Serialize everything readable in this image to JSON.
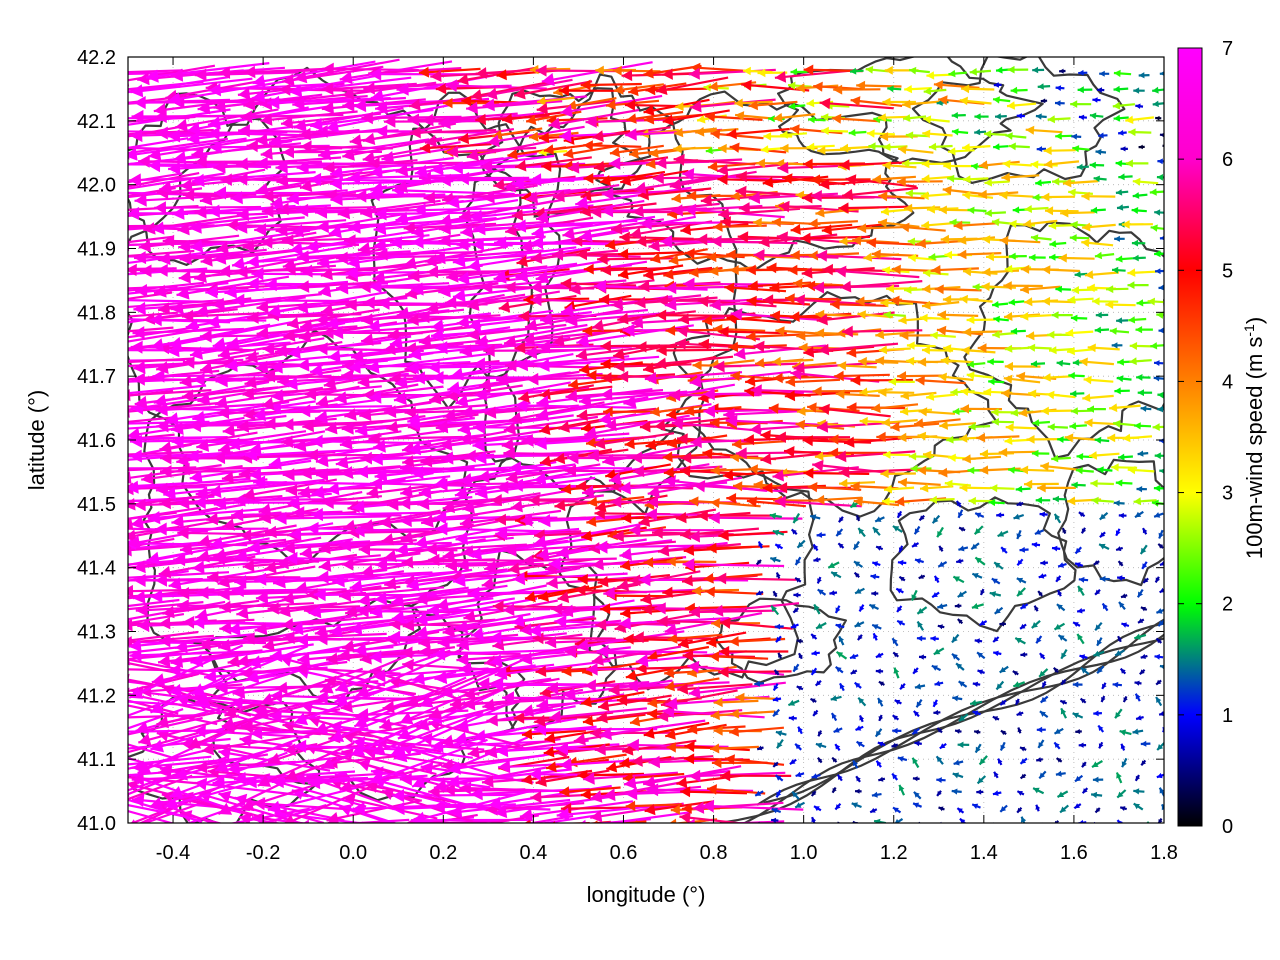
{
  "chart_data": {
    "type": "vector-field",
    "xlabel": "longitude (°)",
    "ylabel": "latitude (°)",
    "xlim": [
      -0.5,
      1.8
    ],
    "ylim": [
      41.0,
      42.2
    ],
    "x_ticks": [
      -0.4,
      -0.2,
      0.0,
      0.2,
      0.4,
      0.6,
      0.8,
      1.0,
      1.2,
      1.4,
      1.6,
      1.8
    ],
    "x_tick_labels": [
      "-0.4",
      "-0.2",
      "0.0",
      "0.2",
      "0.4",
      "0.6",
      "0.8",
      "1.0",
      "1.2",
      "1.4",
      "1.6",
      "1.8"
    ],
    "y_ticks": [
      41.0,
      41.1,
      41.2,
      41.3,
      41.4,
      41.5,
      41.6,
      41.7,
      41.8,
      41.9,
      42.0,
      42.1,
      42.2
    ],
    "y_tick_labels": [
      "41.0",
      "41.1",
      "41.2",
      "41.3",
      "41.4",
      "41.5",
      "41.6",
      "41.7",
      "41.8",
      "41.9",
      "42.0",
      "42.1",
      "42.2"
    ],
    "grid": "dotted",
    "colorbar": {
      "label_main": "100m-wind speed (m s",
      "label_sup": "-1",
      "label_end": ")",
      "range": [
        0,
        7
      ],
      "ticks": [
        0,
        1,
        2,
        3,
        4,
        5,
        6,
        7
      ],
      "tick_labels": [
        "0",
        "1",
        "2",
        "3",
        "4",
        "5",
        "6",
        "7"
      ],
      "colors": [
        "#000000",
        "#0000ff",
        "#00ff00",
        "#ffff00",
        "#ff8000",
        "#ff0000",
        "#ff00ff"
      ],
      "placement": "right"
    },
    "wind_regimes": [
      {
        "region": "west (lon < 0.4)",
        "typical_speed_ms": 6.5,
        "direction": "from east, toward west"
      },
      {
        "region": "central (0.4 to 1.2)",
        "typical_speed_ms": 5.0,
        "direction": "from east, toward west"
      },
      {
        "region": "north-east (lon > 1.2, lat > 41.6)",
        "typical_speed_ms": 3.0,
        "direction": "toward west"
      },
      {
        "region": "south-east sea (lon > 0.9, lat < 41.5)",
        "typical_speed_ms": 1.0,
        "direction": "weak, variable"
      }
    ],
    "terrain_contours": "dark grey isolines"
  }
}
